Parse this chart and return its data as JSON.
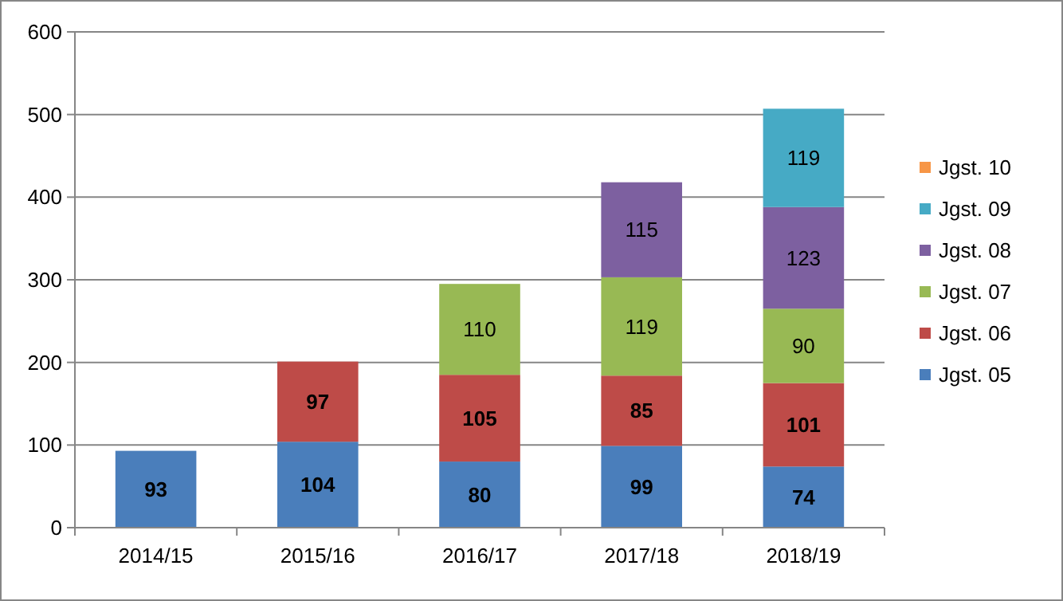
{
  "chart_data": {
    "type": "bar",
    "stacked": true,
    "categories": [
      "2014/15",
      "2015/16",
      "2016/17",
      "2017/18",
      "2018/19"
    ],
    "series": [
      {
        "name": "Jgst. 05",
        "color": "#4a7ebb",
        "values": [
          93,
          104,
          80,
          99,
          74
        ]
      },
      {
        "name": "Jgst. 06",
        "color": "#be4b48",
        "values": [
          null,
          97,
          105,
          85,
          101
        ]
      },
      {
        "name": "Jgst. 07",
        "color": "#98b954",
        "values": [
          null,
          null,
          110,
          119,
          90
        ]
      },
      {
        "name": "Jgst. 08",
        "color": "#7d60a0",
        "values": [
          null,
          null,
          null,
          115,
          123
        ]
      },
      {
        "name": "Jgst. 09",
        "color": "#46aac5",
        "values": [
          null,
          null,
          null,
          null,
          119
        ]
      },
      {
        "name": "Jgst. 10",
        "color": "#f79646",
        "values": [
          null,
          null,
          null,
          null,
          null
        ]
      }
    ],
    "ylim": [
      0,
      600
    ],
    "yticks": [
      0,
      100,
      200,
      300,
      400,
      500,
      600
    ],
    "grid": "y",
    "legend": "right",
    "data_labels": true
  }
}
